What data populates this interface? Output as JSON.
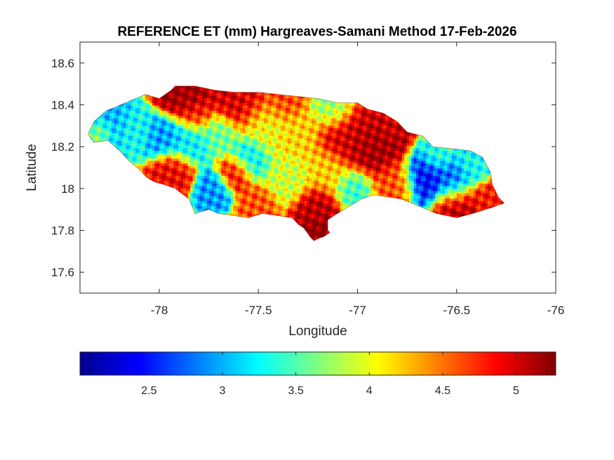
{
  "figure": {
    "title": "REFERENCE ET (mm) Hargreaves-Samani Method  17-Feb-2026",
    "xlabel": "Longitude",
    "ylabel": "Latitude"
  },
  "chart_data": {
    "type": "heatmap",
    "title": "REFERENCE ET (mm) Hargreaves-Samani Method  17-Feb-2026",
    "xlabel": "Longitude",
    "ylabel": "Latitude",
    "xlim": [
      -78.4,
      -76
    ],
    "ylim": [
      17.5,
      18.7
    ],
    "xticks": [
      -78,
      -77.5,
      -77,
      -76.5,
      -76
    ],
    "xtick_labels": [
      "-78",
      "-77.5",
      "-77",
      "-76.5",
      "-76"
    ],
    "yticks": [
      17.6,
      17.8,
      18,
      18.2,
      18.4,
      18.6
    ],
    "ytick_labels": [
      "17.6",
      "17.8",
      "18",
      "18.2",
      "18.4",
      "18.6"
    ],
    "colormap": "jet",
    "colorbar": {
      "range": [
        2.03,
        5.27
      ],
      "ticks": [
        2.5,
        3,
        3.5,
        4,
        4.5,
        5
      ],
      "tick_labels": [
        "2.5",
        "3",
        "3.5",
        "4",
        "4.5",
        "5"
      ]
    },
    "outline": [
      [
        -78.36,
        18.26
      ],
      [
        -78.33,
        18.32
      ],
      [
        -78.27,
        18.37
      ],
      [
        -78.17,
        18.41
      ],
      [
        -78.07,
        18.45
      ],
      [
        -78.0,
        18.43
      ],
      [
        -77.94,
        18.47
      ],
      [
        -77.92,
        18.49
      ],
      [
        -77.82,
        18.49
      ],
      [
        -77.72,
        18.47
      ],
      [
        -77.62,
        18.46
      ],
      [
        -77.5,
        18.46
      ],
      [
        -77.4,
        18.45
      ],
      [
        -77.3,
        18.44
      ],
      [
        -77.2,
        18.43
      ],
      [
        -77.1,
        18.41
      ],
      [
        -77.0,
        18.41
      ],
      [
        -76.95,
        18.38
      ],
      [
        -76.87,
        18.36
      ],
      [
        -76.8,
        18.32
      ],
      [
        -76.75,
        18.27
      ],
      [
        -76.67,
        18.25
      ],
      [
        -76.62,
        18.2
      ],
      [
        -76.52,
        18.19
      ],
      [
        -76.43,
        18.18
      ],
      [
        -76.37,
        18.15
      ],
      [
        -76.33,
        18.08
      ],
      [
        -76.32,
        18.02
      ],
      [
        -76.29,
        17.96
      ],
      [
        -76.26,
        17.93
      ],
      [
        -76.32,
        17.91
      ],
      [
        -76.42,
        17.88
      ],
      [
        -76.5,
        17.86
      ],
      [
        -76.6,
        17.88
      ],
      [
        -76.7,
        17.92
      ],
      [
        -76.78,
        17.95
      ],
      [
        -76.85,
        17.96
      ],
      [
        -76.92,
        17.97
      ],
      [
        -76.98,
        17.95
      ],
      [
        -77.05,
        17.91
      ],
      [
        -77.12,
        17.87
      ],
      [
        -77.15,
        17.85
      ],
      [
        -77.15,
        17.8
      ],
      [
        -77.14,
        17.79
      ],
      [
        -77.17,
        17.77
      ],
      [
        -77.2,
        17.76
      ],
      [
        -77.22,
        17.75
      ],
      [
        -77.24,
        17.77
      ],
      [
        -77.27,
        17.81
      ],
      [
        -77.3,
        17.83
      ],
      [
        -77.33,
        17.86
      ],
      [
        -77.4,
        17.87
      ],
      [
        -77.48,
        17.88
      ],
      [
        -77.55,
        17.86
      ],
      [
        -77.62,
        17.87
      ],
      [
        -77.7,
        17.88
      ],
      [
        -77.75,
        17.9
      ],
      [
        -77.82,
        17.88
      ],
      [
        -77.85,
        17.95
      ],
      [
        -77.92,
        18.0
      ],
      [
        -77.98,
        18.02
      ],
      [
        -78.02,
        18.03
      ],
      [
        -78.06,
        18.05
      ],
      [
        -78.11,
        18.1
      ],
      [
        -78.15,
        18.13
      ],
      [
        -78.2,
        18.18
      ],
      [
        -78.26,
        18.23
      ],
      [
        -78.33,
        18.22
      ]
    ],
    "hotspots": [
      {
        "lon": -78.25,
        "lat": 18.32,
        "value": 3.0,
        "r": 0.08
      },
      {
        "lon": -78.12,
        "lat": 18.28,
        "value": 3.3,
        "r": 0.07
      },
      {
        "lon": -77.98,
        "lat": 18.25,
        "value": 2.9,
        "r": 0.07
      },
      {
        "lon": -77.85,
        "lat": 18.23,
        "value": 3.2,
        "r": 0.08
      },
      {
        "lon": -77.7,
        "lat": 18.25,
        "value": 3.6,
        "r": 0.07
      },
      {
        "lon": -77.88,
        "lat": 18.44,
        "value": 5.2,
        "r": 0.08
      },
      {
        "lon": -77.58,
        "lat": 18.43,
        "value": 5.0,
        "r": 0.1
      },
      {
        "lon": -77.82,
        "lat": 18.35,
        "value": 4.8,
        "r": 0.06
      },
      {
        "lon": -77.45,
        "lat": 18.3,
        "value": 4.0,
        "r": 0.1
      },
      {
        "lon": -77.3,
        "lat": 18.25,
        "value": 4.2,
        "r": 0.08
      },
      {
        "lon": -77.55,
        "lat": 18.15,
        "value": 3.2,
        "r": 0.07
      },
      {
        "lon": -77.73,
        "lat": 18.0,
        "value": 2.9,
        "r": 0.06
      },
      {
        "lon": -77.93,
        "lat": 18.08,
        "value": 4.9,
        "r": 0.07
      },
      {
        "lon": -77.62,
        "lat": 18.08,
        "value": 4.9,
        "r": 0.06
      },
      {
        "lon": -77.35,
        "lat": 18.05,
        "value": 3.9,
        "r": 0.08
      },
      {
        "lon": -77.15,
        "lat": 18.08,
        "value": 4.2,
        "r": 0.08
      },
      {
        "lon": -77.05,
        "lat": 18.25,
        "value": 5.0,
        "r": 0.1
      },
      {
        "lon": -76.92,
        "lat": 18.2,
        "value": 5.2,
        "r": 0.1
      },
      {
        "lon": -76.88,
        "lat": 18.33,
        "value": 5.0,
        "r": 0.08
      },
      {
        "lon": -77.02,
        "lat": 18.0,
        "value": 3.4,
        "r": 0.07
      },
      {
        "lon": -77.2,
        "lat": 17.9,
        "value": 5.1,
        "r": 0.08
      },
      {
        "lon": -77.2,
        "lat": 17.8,
        "value": 5.3,
        "r": 0.05
      },
      {
        "lon": -76.82,
        "lat": 18.02,
        "value": 4.6,
        "r": 0.08
      },
      {
        "lon": -76.65,
        "lat": 18.05,
        "value": 2.4,
        "r": 0.08
      },
      {
        "lon": -76.52,
        "lat": 18.03,
        "value": 2.7,
        "r": 0.07
      },
      {
        "lon": -76.6,
        "lat": 18.15,
        "value": 3.4,
        "r": 0.06
      },
      {
        "lon": -76.42,
        "lat": 18.1,
        "value": 3.3,
        "r": 0.06
      },
      {
        "lon": -76.5,
        "lat": 17.92,
        "value": 5.1,
        "r": 0.08
      },
      {
        "lon": -76.35,
        "lat": 17.95,
        "value": 4.8,
        "r": 0.06
      },
      {
        "lon": -77.38,
        "lat": 18.4,
        "value": 4.7,
        "r": 0.07
      },
      {
        "lon": -77.12,
        "lat": 18.38,
        "value": 3.7,
        "r": 0.07
      },
      {
        "lon": -78.3,
        "lat": 18.27,
        "value": 3.8,
        "r": 0.05
      },
      {
        "lon": -77.5,
        "lat": 17.92,
        "value": 4.6,
        "r": 0.06
      }
    ]
  }
}
